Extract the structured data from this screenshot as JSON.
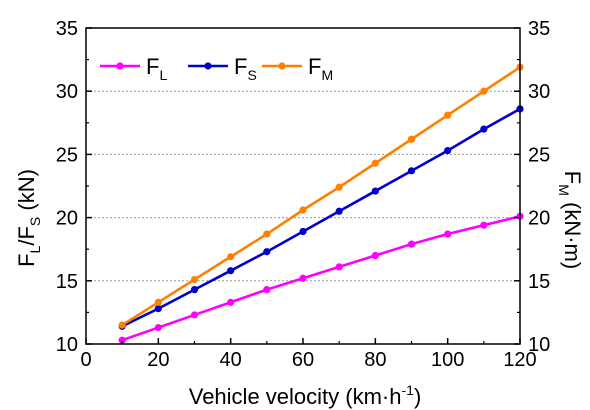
{
  "chart_data": {
    "type": "line",
    "xlabel": {
      "main": "Vehicle velocity (km·h",
      "sup": "-1",
      "close": ")"
    },
    "ylabel_left": {
      "p1": "F",
      "s1": "L",
      "p2": "/F",
      "s2": "S",
      "p3": " (kN)"
    },
    "ylabel_right": {
      "p1": "F",
      "s1": "M",
      "p2": " (kN·m)"
    },
    "xlim": [
      0,
      120
    ],
    "ylim": [
      10,
      35
    ],
    "y2lim": [
      10,
      35
    ],
    "xticks": [
      "0",
      "20",
      "40",
      "60",
      "80",
      "100",
      "120"
    ],
    "yticks": [
      "10",
      "15",
      "20",
      "25",
      "30",
      "35"
    ],
    "y2ticks": [
      "10",
      "15",
      "20",
      "25",
      "30",
      "35"
    ],
    "grid": "horizontal-dotted",
    "legend_position": "top-left",
    "x": [
      10,
      20,
      30,
      40,
      50,
      60,
      70,
      80,
      90,
      100,
      110,
      120
    ],
    "series": [
      {
        "name": "F",
        "sub": "L",
        "axis": "left",
        "color": "#ff00ff",
        "values": [
          10.3,
          11.3,
          12.3,
          13.3,
          14.3,
          15.2,
          16.1,
          17.0,
          17.9,
          18.7,
          19.4,
          20.1
        ]
      },
      {
        "name": "F",
        "sub": "S",
        "axis": "left",
        "color": "#0000cc",
        "values": [
          11.4,
          12.8,
          14.3,
          15.8,
          17.3,
          18.9,
          20.5,
          22.1,
          23.7,
          25.3,
          27.0,
          28.6
        ]
      },
      {
        "name": "F",
        "sub": "M",
        "axis": "right",
        "color": "#ff8000",
        "values": [
          11.5,
          13.3,
          15.1,
          16.9,
          18.7,
          20.6,
          22.4,
          24.3,
          26.2,
          28.1,
          30.0,
          31.9
        ]
      }
    ]
  }
}
